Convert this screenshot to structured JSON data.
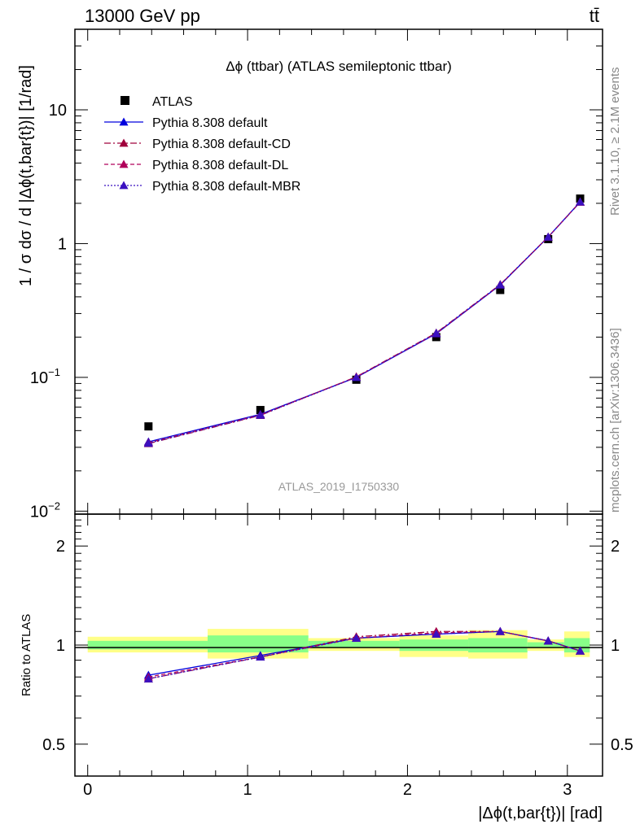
{
  "header": {
    "energy_label": "13000 GeV pp",
    "process_label": "tt̄"
  },
  "side_labels": {
    "rivet": "Rivet 3.1.10, ≥ 2.1M events",
    "mcplots": "mcplots.cern.ch [arXiv:1306.3436]"
  },
  "watermark": "ATLAS_2019_I1750330",
  "colors": {
    "data": "#000000",
    "default": "#0000dd",
    "default_cd": "#a0003c",
    "default_dl": "#b0005a",
    "default_mbr": "#3a10c0",
    "band_yellow": "#ffff88",
    "band_green": "#88ff88"
  },
  "chart_data": [
    {
      "type": "scatter",
      "title": "Δϕ (ttbar) (ATLAS semileptonic ttbar)",
      "xlabel": "|Δϕ(t,bar{t})| [rad]",
      "ylabel": "1 / σ dσ / d |Δϕ(t,bar{t})| [1/rad]",
      "yscale": "log",
      "xlim": [
        -0.08,
        3.22
      ],
      "ylim": [
        0.0095,
        40
      ],
      "y_ticks": [
        {
          "v": 0.01,
          "b": "10",
          "e": "−2"
        },
        {
          "v": 0.1,
          "b": "10",
          "e": "−1"
        },
        {
          "v": 1,
          "b": "1",
          "e": ""
        },
        {
          "v": 10,
          "b": "10",
          "e": ""
        }
      ],
      "legend_position": "top-left",
      "x": [
        0.38,
        1.08,
        1.68,
        2.18,
        2.58,
        2.88,
        3.08
      ],
      "series": [
        {
          "name": "ATLAS",
          "key": "data",
          "marker": "square",
          "dash": "none",
          "values": [
            0.043,
            0.057,
            0.096,
            0.2,
            0.45,
            1.08,
            2.17
          ]
        },
        {
          "name": "Pythia 8.308 default",
          "key": "default",
          "marker": "triangle",
          "dash": "none",
          "values": [
            0.033,
            0.053,
            0.1,
            0.212,
            0.49,
            1.12,
            2.05
          ]
        },
        {
          "name": "Pythia 8.308 default-CD",
          "key": "default_cd",
          "marker": "triangle",
          "dash": "8,3,2,3",
          "values": [
            0.032,
            0.052,
            0.101,
            0.215,
            0.495,
            1.12,
            2.04
          ]
        },
        {
          "name": "Pythia 8.308 default-DL",
          "key": "default_dl",
          "marker": "triangle",
          "dash": "5,3",
          "values": [
            0.0325,
            0.0525,
            0.1005,
            0.213,
            0.492,
            1.12,
            2.05
          ]
        },
        {
          "name": "Pythia 8.308 default-MBR",
          "key": "default_mbr",
          "marker": "triangle",
          "dash": "2,2",
          "values": [
            0.0322,
            0.0522,
            0.1,
            0.214,
            0.493,
            1.12,
            2.05
          ]
        }
      ]
    },
    {
      "type": "line",
      "ylabel": "Ratio to ATLAS",
      "yscale": "log",
      "xlim": [
        -0.08,
        3.22
      ],
      "ylim": [
        0.4,
        2.5
      ],
      "y_ticks": [
        {
          "v": 0.5,
          "b": "0.5",
          "e": ""
        },
        {
          "v": 1,
          "b": "1",
          "e": ""
        },
        {
          "v": 2,
          "b": "2",
          "e": ""
        }
      ],
      "x_ticks": [
        0,
        1,
        2,
        3
      ],
      "bin_edges": [
        0,
        0.75,
        1.38,
        1.95,
        2.38,
        2.75,
        2.98,
        3.14
      ],
      "band_yellow": [
        [
          0.95,
          1.06
        ],
        [
          0.91,
          1.12
        ],
        [
          0.96,
          1.05
        ],
        [
          0.92,
          1.07
        ],
        [
          0.91,
          1.11
        ],
        [
          0.96,
          1.04
        ],
        [
          0.92,
          1.1
        ]
      ],
      "band_green": [
        [
          0.97,
          1.03
        ],
        [
          0.95,
          1.07
        ],
        [
          0.98,
          1.03
        ],
        [
          0.96,
          1.04
        ],
        [
          0.95,
          1.05
        ],
        [
          0.98,
          1.02
        ],
        [
          0.95,
          1.05
        ]
      ],
      "x": [
        0.38,
        1.08,
        1.68,
        2.18,
        2.58,
        2.88,
        3.08
      ],
      "series": [
        {
          "name": "Pythia 8.308 default",
          "key": "default",
          "dash": "none",
          "values": [
            0.81,
            0.93,
            1.05,
            1.08,
            1.1,
            1.03,
            0.96
          ]
        },
        {
          "name": "Pythia 8.308 default-CD",
          "key": "default_cd",
          "dash": "8,3,2,3",
          "values": [
            0.79,
            0.92,
            1.06,
            1.1,
            1.1,
            1.03,
            0.96
          ]
        },
        {
          "name": "Pythia 8.308 default-DL",
          "key": "default_dl",
          "dash": "5,3",
          "values": [
            0.8,
            0.92,
            1.05,
            1.09,
            1.1,
            1.03,
            0.96
          ]
        },
        {
          "name": "Pythia 8.308 default-MBR",
          "key": "default_mbr",
          "dash": "2,2",
          "values": [
            0.79,
            0.92,
            1.05,
            1.08,
            1.1,
            1.03,
            0.96
          ]
        }
      ]
    }
  ]
}
